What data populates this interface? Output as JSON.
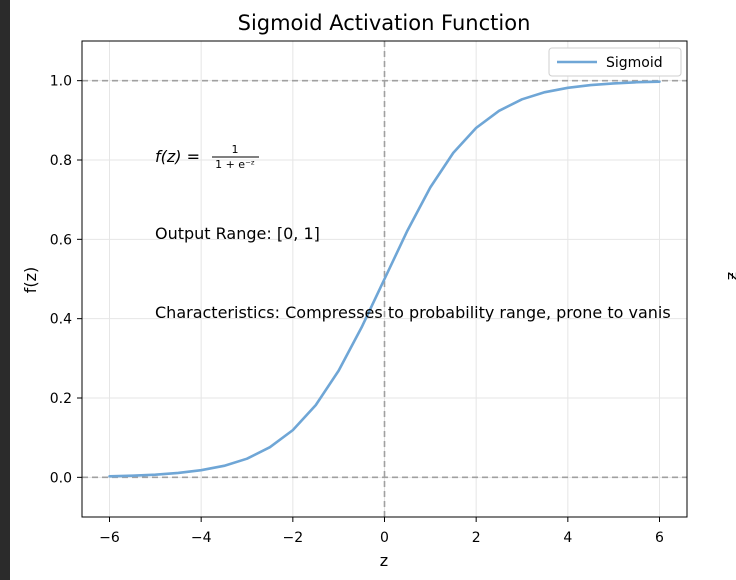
{
  "chart_data": {
    "type": "line",
    "title": "Sigmoid Activation Function",
    "xlabel": "z",
    "ylabel": "f(z)",
    "xlim": [
      -6.6,
      6.6
    ],
    "ylim": [
      -0.1,
      1.1
    ],
    "x_ticks": [
      -6,
      -4,
      -2,
      0,
      2,
      4,
      6
    ],
    "x_tick_labels": [
      "−6",
      "−4",
      "−2",
      "0",
      "2",
      "4",
      "6"
    ],
    "y_ticks": [
      0.0,
      0.2,
      0.4,
      0.6,
      0.8,
      1.0
    ],
    "y_tick_labels": [
      "0.0",
      "0.2",
      "0.4",
      "0.6",
      "0.8",
      "1.0"
    ],
    "grid": true,
    "legend_position": "top-right",
    "series": [
      {
        "name": "Sigmoid",
        "color": "#6fa6d6",
        "x": [
          -6,
          -5.5,
          -5,
          -4.5,
          -4,
          -3.5,
          -3,
          -2.5,
          -2,
          -1.5,
          -1,
          -0.5,
          0,
          0.5,
          1,
          1.5,
          2,
          2.5,
          3,
          3.5,
          4,
          4.5,
          5,
          5.5,
          6
        ],
        "y": [
          0.0025,
          0.0041,
          0.0067,
          0.011,
          0.018,
          0.029,
          0.047,
          0.076,
          0.119,
          0.182,
          0.269,
          0.378,
          0.5,
          0.622,
          0.731,
          0.818,
          0.881,
          0.924,
          0.953,
          0.971,
          0.982,
          0.989,
          0.993,
          0.996,
          0.9975
        ]
      }
    ],
    "reference_lines": [
      {
        "orientation": "horizontal",
        "value": 0.0,
        "style": "dashed",
        "color": "#a0a0a0"
      },
      {
        "orientation": "horizontal",
        "value": 1.0,
        "style": "dashed",
        "color": "#a0a0a0"
      },
      {
        "orientation": "vertical",
        "value": 0.0,
        "style": "dashed",
        "color": "#a0a0a0"
      }
    ],
    "annotations": {
      "formula_lhs": "f(z) =",
      "formula_numerator": "1",
      "formula_denominator": "1 + e⁻ᶻ",
      "output_range": "Output Range: [0, 1]",
      "characteristics": "Characteristics: Compresses to probability range, prone to vanis"
    },
    "right_edge_glyph": "ƶ"
  }
}
